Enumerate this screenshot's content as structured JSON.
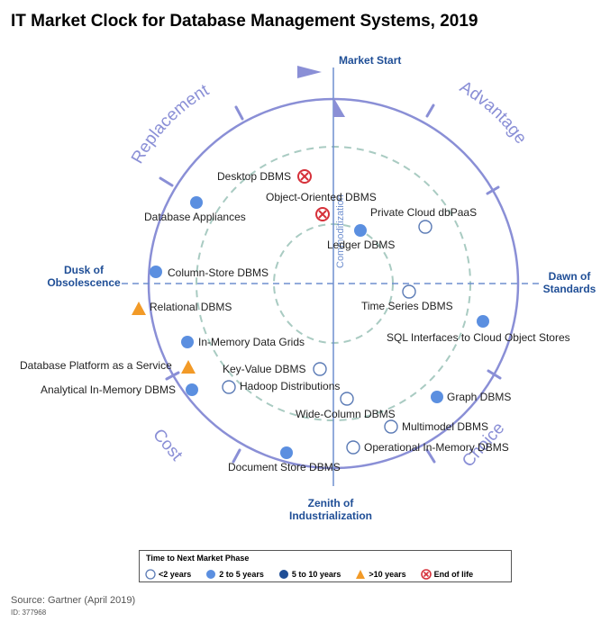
{
  "title": "IT Market Clock for Database Management Systems, 2019",
  "phases": {
    "market_start": "Market Start",
    "dawn_line1": "Dawn of",
    "dawn_line2": "Standards",
    "dusk_line1": "Dusk of",
    "dusk_line2": "Obsolescence",
    "zenith_line1": "Zenith of",
    "zenith_line2": "Industrialization"
  },
  "quadrants": {
    "replacement": "Replacement",
    "advantage": "Advantage",
    "choice": "Choice",
    "cost": "Cost",
    "commoditization": "Commoditization"
  },
  "technologies": [
    {
      "label": "Desktop DBMS",
      "type": "eol"
    },
    {
      "label": "Object-Oriented DBMS",
      "type": "eol"
    },
    {
      "label": "Database Appliances",
      "type": "2-5"
    },
    {
      "label": "Private Cloud dbPaaS",
      "type": "lt2"
    },
    {
      "label": "Ledger DBMS",
      "type": "2-5"
    },
    {
      "label": "Column-Store DBMS",
      "type": "2-5"
    },
    {
      "label": "Time Series DBMS",
      "type": "lt2"
    },
    {
      "label": "Relational DBMS",
      "type": "gt10"
    },
    {
      "label": "SQL Interfaces to Cloud Object Stores",
      "type": "2-5"
    },
    {
      "label": "In-Memory Data Grids",
      "type": "2-5"
    },
    {
      "label": "Database Platform as a Service",
      "type": "gt10"
    },
    {
      "label": "Key-Value DBMS",
      "type": "lt2"
    },
    {
      "label": "Analytical In-Memory DBMS",
      "type": "2-5"
    },
    {
      "label": "Hadoop Distributions",
      "type": "lt2"
    },
    {
      "label": "Graph DBMS",
      "type": "2-5"
    },
    {
      "label": "Wide-Column DBMS",
      "type": "lt2"
    },
    {
      "label": "Multimodel DBMS",
      "type": "lt2"
    },
    {
      "label": "Operational In-Memory DBMS",
      "type": "lt2"
    },
    {
      "label": "Document Store DBMS",
      "type": "2-5"
    }
  ],
  "legend": {
    "title": "Time to Next Market Phase",
    "items": [
      {
        "label": "<2 years",
        "type": "lt2"
      },
      {
        "label": "2 to 5 years",
        "type": "2-5"
      },
      {
        "label": "5 to 10 years",
        "type": "5-10"
      },
      {
        "label": ">10 years",
        "type": "gt10"
      },
      {
        "label": "End of life",
        "type": "eol"
      }
    ]
  },
  "colors": {
    "ring": "#8a8fd6",
    "phase_line": "#6f8fcf",
    "phase_text": "#1f4e96",
    "inner_circle": "#a9cbc2",
    "marker_2_5": "#5b8fe0",
    "marker_5_10": "#1f4e96",
    "marker_lt2": "#5a7ab5",
    "marker_gt10": "#f29a27",
    "marker_eol": "#d6313a"
  },
  "source": "Source: Gartner (April 2019)",
  "figure_id": "ID: 377968"
}
